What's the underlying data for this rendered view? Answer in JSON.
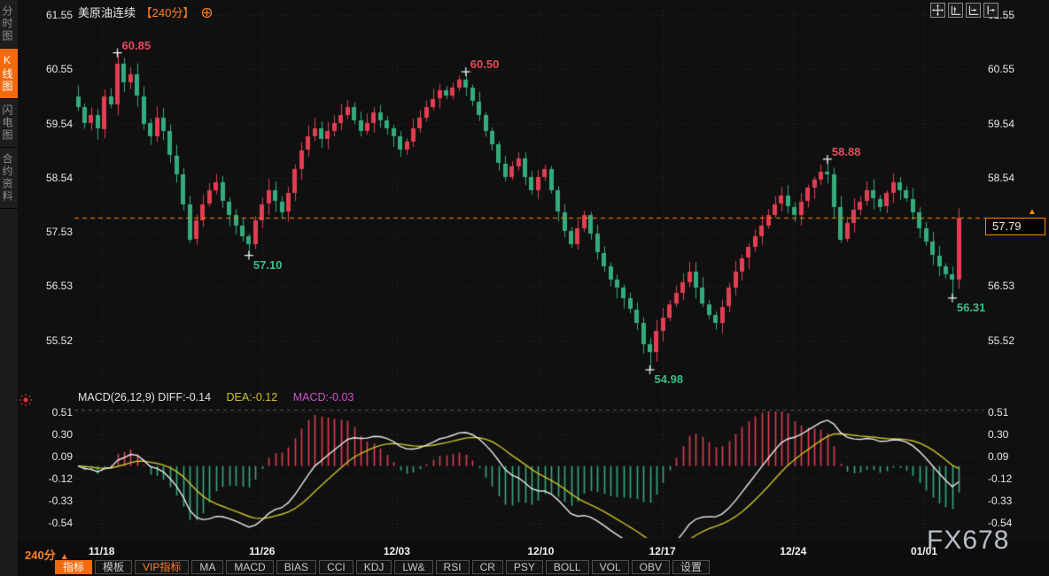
{
  "header": {
    "symbol": "美原油连续",
    "period_tag": "【240分】"
  },
  "sidebar": {
    "tabs": [
      {
        "label": "分时图",
        "active": false
      },
      {
        "label": "K线图",
        "active": true
      },
      {
        "label": "闪电图",
        "active": false
      },
      {
        "label": "合约资料",
        "active": false
      }
    ]
  },
  "price_box": {
    "value": "57.79",
    "up_arrow": "▲"
  },
  "macd_header": {
    "main": "MACD(26,12,9) DIFF:-0.14",
    "dea": "DEA:-0.12",
    "macd": "MACD:-0.03"
  },
  "bottom": {
    "period_label": "240分",
    "up_arrow": "▲"
  },
  "toolbar": {
    "items": [
      {
        "label": "指标",
        "state": "active"
      },
      {
        "label": "模板",
        "state": "normal"
      },
      {
        "label": "VIP指标",
        "state": "vip"
      },
      {
        "label": "MA",
        "state": "normal"
      },
      {
        "label": "MACD",
        "state": "normal"
      },
      {
        "label": "BIAS",
        "state": "normal"
      },
      {
        "label": "CCI",
        "state": "normal"
      },
      {
        "label": "KDJ",
        "state": "normal"
      },
      {
        "label": "LW&",
        "state": "normal"
      },
      {
        "label": "RSI",
        "state": "normal"
      },
      {
        "label": "CR",
        "state": "normal"
      },
      {
        "label": "PSY",
        "state": "normal"
      },
      {
        "label": "BOLL",
        "state": "normal"
      },
      {
        "label": "VOL",
        "state": "normal"
      },
      {
        "label": "OBV",
        "state": "normal"
      },
      {
        "label": "设置",
        "state": "normal"
      }
    ]
  },
  "watermark": "FX678",
  "colors": {
    "up": "#e23e52",
    "down": "#35ab7d",
    "accent": "#ff7f27",
    "diff_line": "#ececec",
    "dea_line": "#cfc22a",
    "macd_label": "#d34fd3",
    "grid": "#2d2d2d",
    "separator": "#555555",
    "price_line": "#ff8a00"
  },
  "chart_data": {
    "type": "candlestick+macd",
    "title": "美原油连续 240分",
    "y_axis_price": {
      "left_ticks": [
        61.55,
        60.55,
        59.54,
        58.54,
        57.53,
        56.53,
        55.52
      ],
      "right_ticks": [
        61.55,
        60.55,
        59.54,
        58.54,
        56.53,
        55.52
      ]
    },
    "y_axis_macd": {
      "ticks": [
        0.51,
        0.3,
        0.09,
        -0.12,
        -0.33,
        -0.54
      ]
    },
    "x_ticks": [
      {
        "label": "11/18",
        "i": 3.6
      },
      {
        "label": "11/26",
        "i": 28
      },
      {
        "label": "12/03",
        "i": 48.5
      },
      {
        "label": "12/10",
        "i": 70.4
      },
      {
        "label": "12/17",
        "i": 88.9
      },
      {
        "label": "12/24",
        "i": 108.8
      },
      {
        "label": "01/01",
        "i": 128.7
      }
    ],
    "first_open": 60.05,
    "closes": [
      59.85,
      59.55,
      59.7,
      59.45,
      60.05,
      59.9,
      60.65,
      60.3,
      60.45,
      60.05,
      59.55,
      59.3,
      59.65,
      59.4,
      58.95,
      58.6,
      58.05,
      57.4,
      57.75,
      58.05,
      58.3,
      58.45,
      58.1,
      57.85,
      57.65,
      57.45,
      57.3,
      57.75,
      58.05,
      58.3,
      58.1,
      57.9,
      58.25,
      58.7,
      59.05,
      59.3,
      59.45,
      59.25,
      59.4,
      59.55,
      59.7,
      59.85,
      59.6,
      59.4,
      59.55,
      59.75,
      59.6,
      59.45,
      59.3,
      59.05,
      59.2,
      59.45,
      59.65,
      59.85,
      60.0,
      60.15,
      60.05,
      60.2,
      60.35,
      60.2,
      59.95,
      59.7,
      59.4,
      59.15,
      58.8,
      58.55,
      58.75,
      58.9,
      58.55,
      58.3,
      58.55,
      58.7,
      58.3,
      57.9,
      57.55,
      57.3,
      57.6,
      57.85,
      57.5,
      57.15,
      56.9,
      56.65,
      56.5,
      56.3,
      56.1,
      55.85,
      55.45,
      55.3,
      55.7,
      55.95,
      56.2,
      56.4,
      56.6,
      56.8,
      56.5,
      56.2,
      56.0,
      55.85,
      56.15,
      56.5,
      56.8,
      57.05,
      57.25,
      57.45,
      57.65,
      57.85,
      58.05,
      58.2,
      58.0,
      57.85,
      58.1,
      58.35,
      58.5,
      58.65,
      58.6,
      58.0,
      57.4,
      57.7,
      57.95,
      58.1,
      58.3,
      58.15,
      58.0,
      58.25,
      58.45,
      58.3,
      58.15,
      57.9,
      57.6,
      57.35,
      57.1,
      56.9,
      56.75,
      56.65,
      57.79
    ],
    "extremes": [
      {
        "i": 6,
        "type": "high",
        "value": 60.85,
        "label": "60.85"
      },
      {
        "i": 26,
        "type": "low",
        "value": 57.1,
        "label": "57.10"
      },
      {
        "i": 59,
        "type": "high",
        "value": 60.5,
        "label": "60.50"
      },
      {
        "i": 87,
        "type": "low",
        "value": 54.98,
        "label": "54.98"
      },
      {
        "i": 114,
        "type": "high",
        "value": 58.88,
        "label": "58.88"
      },
      {
        "i": 133,
        "type": "low",
        "value": 56.31,
        "label": "56.31"
      }
    ],
    "last_price": 57.79,
    "macd_params": [
      26,
      12,
      9
    ],
    "macd_last": {
      "diff": -0.14,
      "dea": -0.12,
      "macd": -0.03
    }
  }
}
